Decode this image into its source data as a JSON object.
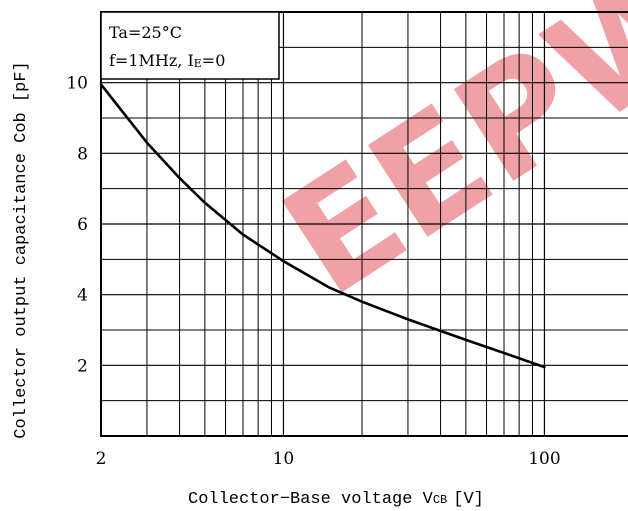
{
  "chart_data": {
    "type": "line",
    "title": "",
    "xlabel": "Collector−Base voltage VCB [V]",
    "xlabel_parts": {
      "main": "Collector−Base voltage V",
      "sub": "CB",
      "unit": "[V]"
    },
    "ylabel": "Collector output capacitance Cob [pF]",
    "x_scale": "log",
    "y_scale": "linear",
    "xlim": [
      2,
      200
    ],
    "ylim": [
      0,
      12
    ],
    "x_ticks": [
      2,
      10,
      100
    ],
    "x_tick_labels": [
      "2",
      "10",
      "100"
    ],
    "y_ticks": [
      2,
      4,
      6,
      8,
      10
    ],
    "y_tick_labels": [
      "2",
      "4",
      "6",
      "8",
      "10"
    ],
    "grid": true,
    "annotations": {
      "line1": "Ta=25°C",
      "line2_prefix": "f=1MHz,  I",
      "line2_sub": "E",
      "line2_suffix": "=0"
    },
    "watermark_text": "EEPW",
    "series": [
      {
        "x": [
          2,
          3,
          4,
          5,
          7,
          10,
          15,
          20,
          30,
          50,
          70,
          100
        ],
        "y": [
          9.95,
          8.3,
          7.3,
          6.6,
          5.7,
          4.95,
          4.2,
          3.8,
          3.3,
          2.72,
          2.35,
          1.95
        ]
      }
    ]
  }
}
